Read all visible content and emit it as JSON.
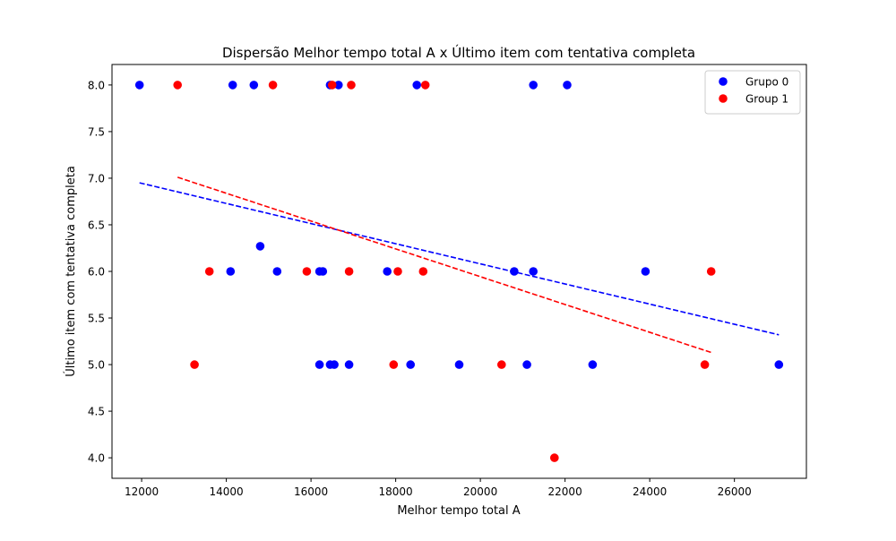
{
  "chart_data": {
    "type": "scatter",
    "title": "Dispersão Melhor tempo total A x Último item com tentativa completa",
    "xlabel": "Melhor tempo total A",
    "ylabel": "Último item com tentativa completa",
    "xlim": [
      11300,
      27700
    ],
    "ylim": [
      3.78,
      8.22
    ],
    "xticks": [
      12000,
      14000,
      16000,
      18000,
      20000,
      22000,
      24000,
      26000
    ],
    "xtick_labels": [
      "12000",
      "14000",
      "16000",
      "18000",
      "20000",
      "22000",
      "24000",
      "26000"
    ],
    "yticks": [
      4.0,
      4.5,
      5.0,
      5.5,
      6.0,
      6.5,
      7.0,
      7.5,
      8.0
    ],
    "ytick_labels": [
      "4.0",
      "4.5",
      "5.0",
      "5.5",
      "6.0",
      "6.5",
      "7.0",
      "7.5",
      "8.0"
    ],
    "grid": false,
    "legend_position": "top-right",
    "series": [
      {
        "name": "Grupo 0",
        "color": "#0000ff",
        "points": [
          [
            11950,
            8
          ],
          [
            14150,
            8
          ],
          [
            14650,
            8
          ],
          [
            16450,
            8
          ],
          [
            16650,
            8
          ],
          [
            18500,
            8
          ],
          [
            21250,
            8
          ],
          [
            22050,
            8
          ],
          [
            14800,
            6.27
          ],
          [
            14100,
            6
          ],
          [
            15200,
            6
          ],
          [
            16200,
            6
          ],
          [
            16280,
            6
          ],
          [
            17800,
            6
          ],
          [
            20800,
            6
          ],
          [
            21250,
            6
          ],
          [
            23900,
            6
          ],
          [
            16200,
            5
          ],
          [
            16450,
            5
          ],
          [
            16550,
            5
          ],
          [
            16900,
            5
          ],
          [
            18350,
            5
          ],
          [
            19500,
            5
          ],
          [
            21100,
            5
          ],
          [
            22650,
            5
          ],
          [
            27050,
            5
          ]
        ],
        "trend": {
          "x": [
            11950,
            27050
          ],
          "y": [
            6.95,
            5.32
          ]
        }
      },
      {
        "name": "Group 1",
        "color": "#ff0000",
        "points": [
          [
            12850,
            8
          ],
          [
            15100,
            8
          ],
          [
            16500,
            8
          ],
          [
            16950,
            8
          ],
          [
            18700,
            8
          ],
          [
            13600,
            6
          ],
          [
            15900,
            6
          ],
          [
            16900,
            6
          ],
          [
            18050,
            6
          ],
          [
            18650,
            6
          ],
          [
            25450,
            6
          ],
          [
            13250,
            5
          ],
          [
            17950,
            5
          ],
          [
            20500,
            5
          ],
          [
            25300,
            5
          ],
          [
            21750,
            4
          ]
        ],
        "trend": {
          "x": [
            12850,
            25450
          ],
          "y": [
            7.01,
            5.13
          ]
        }
      }
    ]
  }
}
